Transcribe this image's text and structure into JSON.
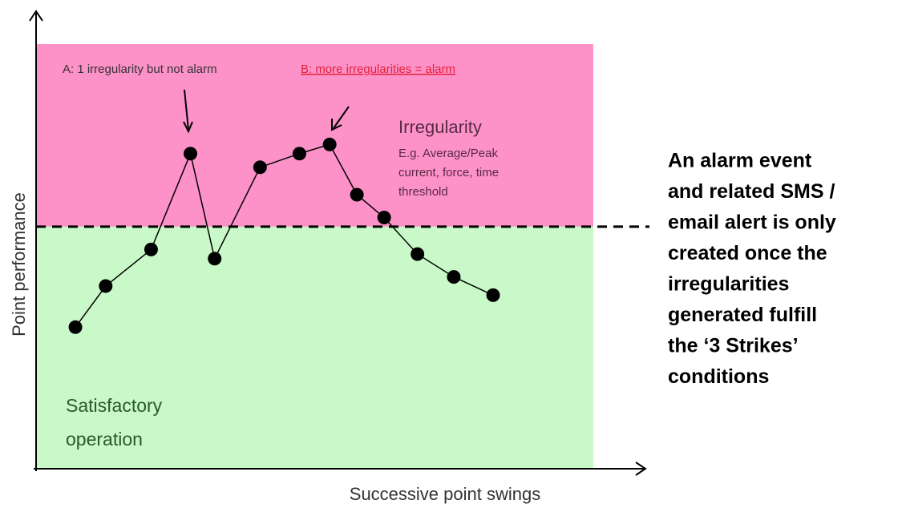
{
  "chart_data": {
    "type": "line",
    "x_label": "Successive point swings",
    "y_label": "Point performance",
    "xlim": [
      0,
      20
    ],
    "ylim": [
      0,
      10
    ],
    "threshold": 5.3,
    "x": [
      1.3,
      2.3,
      3.8,
      5.1,
      5.9,
      7.4,
      8.7,
      9.7,
      10.6,
      11.5,
      12.6,
      13.8,
      15.1
    ],
    "series": [
      {
        "name": "Point performance",
        "color": "#000000",
        "values": [
          3.1,
          4.0,
          4.8,
          6.9,
          4.6,
          6.6,
          6.9,
          7.1,
          6.0,
          5.5,
          4.7,
          4.2,
          3.8
        ]
      }
    ],
    "annotations": {
      "a": "A: 1 irregularity but not alarm",
      "b": "B: more irregularities =  alarm",
      "irregularity": "Irregularity",
      "irregularity_detail": [
        "E.g. Average/Peak",
        "current, force, time",
        "threshold"
      ],
      "satisfactory": [
        "Satisfactory",
        "operation"
      ],
      "alarm_note": [
        "An alarm event",
        "and related SMS /",
        "email alert is only",
        "created once the",
        "irregularities",
        "generated fulfill",
        "the ‘3 Strikes’",
        "conditions"
      ]
    }
  }
}
